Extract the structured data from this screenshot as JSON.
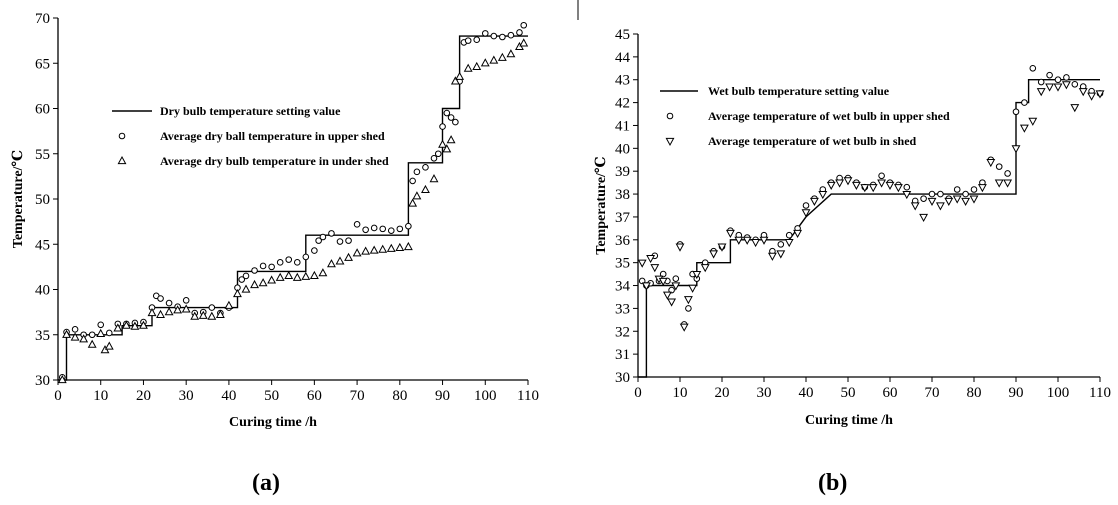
{
  "chart_data": [
    {
      "type": "line",
      "panel_label": "(a)",
      "xlabel": "Curing time /h",
      "ylabel": "Temperature/℃",
      "xlim": [
        0,
        110
      ],
      "ylim": [
        30,
        70
      ],
      "x_ticks": [
        0,
        10,
        20,
        30,
        40,
        50,
        60,
        70,
        80,
        90,
        100,
        110
      ],
      "y_ticks": [
        30,
        35,
        40,
        45,
        50,
        55,
        60,
        65,
        70
      ],
      "grid": false,
      "legend_position": "upper-left inside",
      "series": [
        {
          "name": "Dry bulb temperature setting value",
          "style": "step-line",
          "x": [
            0,
            2,
            2,
            8,
            8,
            15,
            15,
            22,
            22,
            38,
            38,
            42,
            42,
            58,
            58,
            82,
            82,
            90,
            90,
            94,
            94,
            110
          ],
          "y": [
            30,
            30,
            35,
            35,
            35,
            35,
            36,
            36,
            38,
            38,
            38,
            38,
            42,
            42,
            46,
            46,
            54,
            54,
            60,
            60,
            68,
            68
          ]
        },
        {
          "name": "Average dry ball temperature in upper shed",
          "style": "circle",
          "x": [
            1,
            2,
            4,
            6,
            8,
            10,
            12,
            14,
            16,
            18,
            20,
            22,
            23,
            24,
            26,
            28,
            30,
            32,
            34,
            36,
            38,
            40,
            42,
            43,
            44,
            46,
            48,
            50,
            52,
            54,
            56,
            58,
            60,
            61,
            62,
            64,
            66,
            68,
            70,
            72,
            74,
            76,
            78,
            80,
            82,
            83,
            84,
            86,
            88,
            89,
            90,
            91,
            92,
            93,
            94,
            95,
            96,
            98,
            100,
            102,
            104,
            106,
            108,
            109
          ],
          "y": [
            30.3,
            35.3,
            35.6,
            35.0,
            35.0,
            36.1,
            35.2,
            36.2,
            36.2,
            36.3,
            36.4,
            38.0,
            39.3,
            39.0,
            38.5,
            38.1,
            38.8,
            37.4,
            37.5,
            38.0,
            37.4,
            38.0,
            40.2,
            41.1,
            41.5,
            42.1,
            42.6,
            42.5,
            43.0,
            43.3,
            43.0,
            43.6,
            44.3,
            45.4,
            45.8,
            46.2,
            45.3,
            45.4,
            47.2,
            46.6,
            46.8,
            46.7,
            46.5,
            46.7,
            47.0,
            52.0,
            53.0,
            53.5,
            54.5,
            55.0,
            58.0,
            59.5,
            59.0,
            58.5,
            63.0,
            67.3,
            67.5,
            67.6,
            68.3,
            68.0,
            67.9,
            68.1,
            68.4,
            69.2
          ]
        },
        {
          "name": "Average dry bulb temperature in under shed",
          "style": "triangle",
          "x": [
            1,
            2,
            4,
            6,
            8,
            10,
            11,
            12,
            14,
            16,
            18,
            20,
            22,
            24,
            26,
            28,
            30,
            32,
            34,
            36,
            38,
            40,
            42,
            44,
            46,
            48,
            50,
            52,
            54,
            56,
            58,
            60,
            62,
            64,
            66,
            68,
            70,
            72,
            74,
            76,
            78,
            80,
            82,
            83,
            84,
            86,
            88,
            90,
            91,
            92,
            93,
            94,
            96,
            98,
            100,
            102,
            104,
            106,
            108,
            109
          ],
          "y": [
            30.0,
            35.0,
            34.7,
            34.5,
            33.9,
            35.1,
            33.3,
            33.7,
            35.7,
            36.0,
            35.9,
            36.0,
            37.4,
            37.2,
            37.5,
            37.7,
            37.8,
            37.0,
            37.1,
            37.0,
            37.2,
            38.2,
            39.5,
            40.0,
            40.5,
            40.7,
            41.0,
            41.3,
            41.5,
            41.3,
            41.4,
            41.5,
            41.8,
            42.8,
            43.1,
            43.5,
            44.0,
            44.2,
            44.3,
            44.4,
            44.5,
            44.6,
            44.7,
            49.5,
            50.3,
            51.0,
            52.2,
            56.0,
            55.5,
            56.5,
            63.0,
            63.5,
            64.4,
            64.6,
            65.0,
            65.3,
            65.6,
            66.0,
            66.8,
            67.2
          ]
        }
      ]
    },
    {
      "type": "line",
      "panel_label": "(b)",
      "xlabel": "Curing time /h",
      "ylabel": "Temperature/℃",
      "xlim": [
        0,
        110
      ],
      "ylim": [
        30,
        45
      ],
      "x_ticks": [
        0,
        10,
        20,
        30,
        40,
        50,
        60,
        70,
        80,
        90,
        100,
        110
      ],
      "y_ticks": [
        30,
        31,
        32,
        33,
        34,
        35,
        36,
        37,
        38,
        39,
        40,
        41,
        42,
        43,
        44,
        45
      ],
      "grid": false,
      "legend_position": "upper-left inside",
      "series": [
        {
          "name": "Wet bulb temperature setting value",
          "style": "step-line",
          "x": [
            0,
            2,
            2,
            14,
            14,
            22,
            22,
            36,
            36,
            40,
            40,
            46,
            46,
            64,
            64,
            90,
            90,
            93,
            93,
            110
          ],
          "y": [
            30,
            30,
            34,
            34,
            35,
            35,
            36,
            36,
            36,
            37,
            37,
            38,
            38,
            38,
            38,
            38,
            42,
            42,
            43,
            43
          ]
        },
        {
          "name": "Average temperature of wet bulb in upper shed",
          "style": "circle",
          "x": [
            1,
            2,
            3,
            4,
            5,
            6,
            7,
            8,
            9,
            10,
            11,
            12,
            13,
            14,
            16,
            18,
            20,
            22,
            24,
            26,
            28,
            30,
            32,
            34,
            36,
            38,
            40,
            42,
            44,
            46,
            48,
            50,
            52,
            54,
            56,
            58,
            60,
            62,
            64,
            66,
            68,
            70,
            72,
            74,
            76,
            78,
            80,
            82,
            84,
            86,
            88,
            90,
            92,
            94,
            96,
            98,
            100,
            102,
            104,
            106,
            108,
            110
          ],
          "y": [
            34.2,
            34.0,
            34.1,
            35.3,
            34.2,
            34.5,
            34.2,
            33.8,
            34.3,
            35.8,
            32.3,
            33.0,
            34.5,
            34.3,
            35.0,
            35.5,
            35.7,
            36.4,
            36.2,
            36.1,
            36.0,
            36.2,
            35.5,
            35.8,
            36.2,
            36.5,
            37.5,
            37.8,
            38.2,
            38.5,
            38.7,
            38.7,
            38.5,
            38.3,
            38.4,
            38.8,
            38.5,
            38.4,
            38.3,
            37.7,
            37.8,
            38.0,
            38.0,
            37.8,
            38.2,
            38.0,
            38.2,
            38.5,
            39.5,
            39.2,
            38.9,
            41.6,
            42.0,
            43.5,
            42.9,
            43.2,
            43.0,
            43.1,
            42.8,
            42.7,
            42.5,
            42.4
          ]
        },
        {
          "name": "Average temperature of wet bulb in shed",
          "style": "triangle-down",
          "x": [
            1,
            2,
            3,
            4,
            5,
            6,
            7,
            8,
            9,
            10,
            11,
            12,
            13,
            14,
            16,
            18,
            20,
            22,
            24,
            26,
            28,
            30,
            32,
            34,
            36,
            38,
            40,
            42,
            44,
            46,
            48,
            50,
            52,
            54,
            56,
            58,
            60,
            62,
            64,
            66,
            68,
            70,
            72,
            74,
            76,
            78,
            80,
            82,
            84,
            86,
            88,
            90,
            92,
            94,
            96,
            98,
            100,
            102,
            104,
            106,
            108,
            110
          ],
          "y": [
            35.0,
            34.0,
            35.2,
            34.8,
            34.3,
            34.2,
            33.6,
            33.3,
            34.0,
            35.7,
            32.2,
            33.4,
            33.9,
            34.5,
            34.8,
            35.4,
            35.7,
            36.3,
            36.0,
            36.0,
            35.9,
            36.0,
            35.3,
            35.4,
            35.9,
            36.3,
            37.2,
            37.7,
            38.0,
            38.4,
            38.5,
            38.6,
            38.4,
            38.3,
            38.3,
            38.5,
            38.4,
            38.3,
            38.0,
            37.5,
            37.0,
            37.7,
            37.5,
            37.7,
            37.8,
            37.7,
            37.8,
            38.3,
            39.4,
            38.5,
            38.5,
            40.0,
            40.9,
            41.2,
            42.5,
            42.7,
            42.7,
            42.8,
            41.8,
            42.5,
            42.3,
            42.4
          ]
        }
      ]
    }
  ]
}
